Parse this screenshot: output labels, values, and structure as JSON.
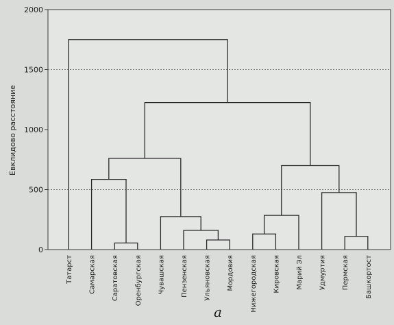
{
  "chart_data": {
    "type": "dendrogram",
    "ylabel": "Евклидово расстояние",
    "ylim": [
      0,
      2000
    ],
    "yticks": [
      0,
      500,
      1000,
      1500,
      2000
    ],
    "grid": "horizontal dashed at 500 and 1500",
    "leaves": [
      "Татарст",
      "Самарская",
      "Саратовская",
      "Оренбургская",
      "Чувашская",
      "Пензенская",
      "Ульяновская",
      "Мордовия",
      "Нижегородская",
      "Кировская",
      "Марий Эл",
      "Удмуртия",
      "Пермская",
      "Башкортост"
    ],
    "merges": [
      {
        "a": "L2",
        "b": "L3",
        "height": 55
      },
      {
        "a": "L1",
        "b": "M0",
        "height": 585
      },
      {
        "a": "L6",
        "b": "L7",
        "height": 80
      },
      {
        "a": "L5",
        "b": "M2",
        "height": 160
      },
      {
        "a": "L4",
        "b": "M3",
        "height": 275
      },
      {
        "a": "M1",
        "b": "M4",
        "height": 760
      },
      {
        "a": "L8",
        "b": "L9",
        "height": 130
      },
      {
        "a": "M6",
        "b": "L10",
        "height": 285
      },
      {
        "a": "L12",
        "b": "L13",
        "height": 110
      },
      {
        "a": "L11",
        "b": "M8",
        "height": 475
      },
      {
        "a": "M7",
        "b": "M9",
        "height": 700
      },
      {
        "a": "M5",
        "b": "M10",
        "height": 1225
      },
      {
        "a": "L0",
        "b": "M11",
        "height": 1750
      }
    ],
    "caption": "а"
  }
}
